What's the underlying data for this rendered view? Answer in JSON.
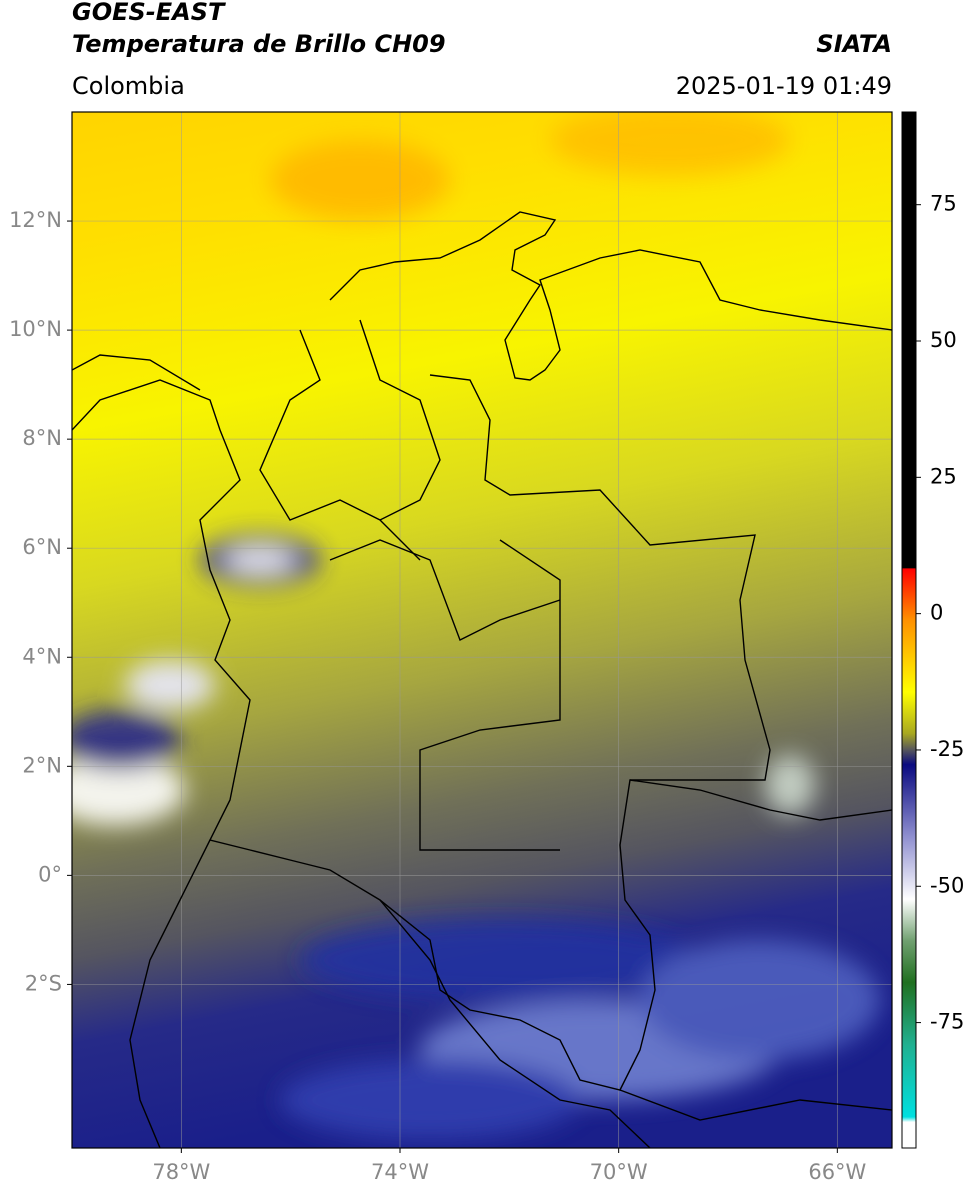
{
  "header": {
    "source": "GOES-EAST",
    "title": "Temperatura de Brillo CH09",
    "region": "Colombia",
    "agency": "SIATA",
    "datetime": "2025-01-19 01:49"
  },
  "map": {
    "lon_range": [
      -80,
      -65
    ],
    "lat_range": [
      -5,
      14
    ],
    "lon_ticks": [
      {
        "value": -78,
        "label": "78°W"
      },
      {
        "value": -74,
        "label": "74°W"
      },
      {
        "value": -70,
        "label": "70°W"
      },
      {
        "value": -66,
        "label": "66°W"
      }
    ],
    "lat_ticks": [
      {
        "value": 12,
        "label": "12°N"
      },
      {
        "value": 10,
        "label": "10°N"
      },
      {
        "value": 8,
        "label": "8°N"
      },
      {
        "value": 6,
        "label": "6°N"
      },
      {
        "value": 4,
        "label": "4°N"
      },
      {
        "value": 2,
        "label": "2°N"
      },
      {
        "value": 0,
        "label": "0°"
      },
      {
        "value": -2,
        "label": "2°S"
      }
    ]
  },
  "colorbar": {
    "range": [
      -98,
      92
    ],
    "ticks": [
      75,
      50,
      25,
      0,
      -25,
      -50,
      -75
    ]
  }
}
